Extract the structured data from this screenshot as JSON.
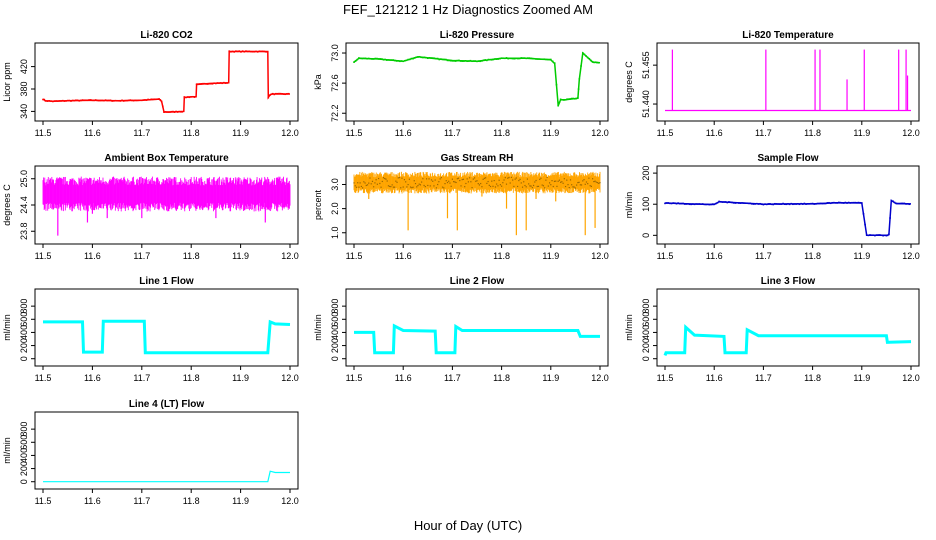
{
  "title": "FEF_121212  1 Hz Diagnostics Zoomed AM",
  "xlabel": "Hour of Day (UTC)",
  "colors": {
    "co2": "#ff0000",
    "pressure": "#00cc00",
    "temperature": "#ff00ff",
    "box": "#ff00ff",
    "rh": "#ffa500",
    "rh_line": "#996600",
    "sample": "#0000cc",
    "flow": "#00ffff"
  },
  "chart_data": [
    {
      "id": "co2",
      "type": "line",
      "title": "Li-820 CO2",
      "ylabel": "Licor ppm",
      "xlim": [
        11.5,
        12.0
      ],
      "ylim": [
        330,
        455
      ],
      "xticks": [
        "11.5",
        "11.6",
        "11.7",
        "11.8",
        "11.9",
        "12.0"
      ],
      "yticks": [
        "340",
        "380",
        "420"
      ],
      "color": "#ff0000",
      "x": [
        11.5,
        11.505,
        11.52,
        11.55,
        11.6,
        11.65,
        11.7,
        11.735,
        11.74,
        11.745,
        11.76,
        11.785,
        11.786,
        11.8,
        11.81,
        11.811,
        11.84,
        11.876,
        11.877,
        11.955,
        11.956,
        11.96,
        11.965,
        12.0
      ],
      "y": [
        362,
        359,
        358,
        359,
        360,
        359,
        360,
        362,
        358,
        339,
        339,
        340,
        365,
        366,
        366,
        388,
        390,
        391,
        447,
        447,
        365,
        370,
        371,
        371
      ]
    },
    {
      "id": "pressure",
      "type": "line",
      "title": "Li-820 Pressure",
      "ylabel": "kPa",
      "xlim": [
        11.5,
        12.0
      ],
      "ylim": [
        72.15,
        73.08
      ],
      "xticks": [
        "11.5",
        "11.6",
        "11.7",
        "11.8",
        "11.9",
        "12.0"
      ],
      "yticks": [
        "72.2",
        "72.6",
        "73.0"
      ],
      "color": "#00cc00",
      "x": [
        11.5,
        11.51,
        11.55,
        11.6,
        11.63,
        11.7,
        11.75,
        11.8,
        11.85,
        11.9,
        11.908,
        11.915,
        11.92,
        11.93,
        11.955,
        11.958,
        11.965,
        11.985,
        12.0
      ],
      "y": [
        72.88,
        72.93,
        72.92,
        72.89,
        72.95,
        72.9,
        72.89,
        72.93,
        72.93,
        72.91,
        72.86,
        72.3,
        72.38,
        72.38,
        72.4,
        72.65,
        73.0,
        72.88,
        72.87
      ]
    },
    {
      "id": "li820_temperature",
      "type": "line",
      "title": "Li-820 Temperature",
      "ylabel": "degrees C",
      "xlim": [
        11.5,
        12.0
      ],
      "ylim": [
        51.435,
        51.462
      ],
      "xticks": [
        "11.5",
        "11.6",
        "11.7",
        "11.8",
        "11.9",
        "12.0"
      ],
      "yticks": [
        "51.440",
        "51.455"
      ],
      "color": "#ff00ff",
      "baseline": 51.4375,
      "spikes": [
        {
          "x": 11.515,
          "y": 51.461
        },
        {
          "x": 11.705,
          "y": 51.461
        },
        {
          "x": 11.805,
          "y": 51.461
        },
        {
          "x": 11.815,
          "y": 51.461
        },
        {
          "x": 11.87,
          "y": 51.4495
        },
        {
          "x": 11.905,
          "y": 51.461
        },
        {
          "x": 11.975,
          "y": 51.461
        },
        {
          "x": 11.99,
          "y": 51.461
        },
        {
          "x": 11.993,
          "y": 51.451
        }
      ]
    },
    {
      "id": "box_temperature",
      "type": "line",
      "title": "Ambient Box Temperature",
      "ylabel": "degrees C",
      "xlim": [
        11.5,
        12.0
      ],
      "ylim": [
        23.6,
        25.2
      ],
      "xticks": [
        "11.5",
        "11.6",
        "11.7",
        "11.8",
        "11.9",
        "12.0"
      ],
      "yticks": [
        "23.8",
        "24.4",
        "25.0"
      ],
      "color": "#ff00ff",
      "band": [
        24.45,
        24.85
      ],
      "dips": [
        {
          "x": 11.53,
          "y": 23.7
        },
        {
          "x": 11.59,
          "y": 24.0
        },
        {
          "x": 11.7,
          "y": 24.1
        },
        {
          "x": 11.63,
          "y": 24.1
        },
        {
          "x": 11.85,
          "y": 24.1
        },
        {
          "x": 11.6,
          "y": 24.2
        },
        {
          "x": 11.95,
          "y": 24.0
        }
      ]
    },
    {
      "id": "rh",
      "type": "line",
      "title": "Gas Stream RH",
      "ylabel": "percent",
      "xlim": [
        11.5,
        12.0
      ],
      "ylim": [
        0.7,
        3.6
      ],
      "xticks": [
        "11.5",
        "11.6",
        "11.7",
        "11.8",
        "11.9",
        "12.0"
      ],
      "yticks": [
        "1.0",
        "2.0",
        "3.0"
      ],
      "color": "#ffa500",
      "band": [
        2.85,
        3.3
      ],
      "dips": [
        {
          "x": 11.53,
          "y": 2.4
        },
        {
          "x": 11.61,
          "y": 1.1
        },
        {
          "x": 11.69,
          "y": 1.6
        },
        {
          "x": 11.71,
          "y": 1.1
        },
        {
          "x": 11.76,
          "y": 2.5
        },
        {
          "x": 11.81,
          "y": 2.0
        },
        {
          "x": 11.83,
          "y": 0.9
        },
        {
          "x": 11.85,
          "y": 1.1
        },
        {
          "x": 11.87,
          "y": 2.4
        },
        {
          "x": 11.91,
          "y": 2.3
        },
        {
          "x": 11.97,
          "y": 0.9
        },
        {
          "x": 11.99,
          "y": 1.2
        }
      ]
    },
    {
      "id": "sample_flow",
      "type": "line",
      "title": "Sample Flow",
      "ylabel": "ml/min",
      "xlim": [
        11.5,
        12.0
      ],
      "ylim": [
        -15,
        210
      ],
      "xticks": [
        "11.5",
        "11.6",
        "11.7",
        "11.8",
        "11.9",
        "12.0"
      ],
      "yticks": [
        "0",
        "100",
        "200"
      ],
      "color": "#0000cc",
      "x": [
        11.5,
        11.55,
        11.6,
        11.61,
        11.7,
        11.75,
        11.8,
        11.85,
        11.9,
        11.91,
        11.95,
        11.955,
        11.96,
        11.97,
        12.0
      ],
      "y": [
        104,
        101,
        99,
        108,
        100,
        101,
        101,
        105,
        104,
        0,
        0,
        2,
        112,
        102,
        101
      ]
    },
    {
      "id": "line1",
      "type": "line",
      "title": "Line 1 Flow",
      "ylabel": "ml/min",
      "xlim": [
        11.5,
        12.0
      ],
      "ylim": [
        -50,
        1000
      ],
      "xticks": [
        "11.5",
        "11.6",
        "11.7",
        "11.8",
        "11.9",
        "12.0"
      ],
      "yticks": [
        "0",
        "200",
        "400",
        "600",
        "800"
      ],
      "color": "#00ffff",
      "x": [
        11.5,
        11.58,
        11.582,
        11.62,
        11.622,
        11.705,
        11.707,
        11.955,
        11.96,
        11.97,
        12.0
      ],
      "y": [
        560,
        560,
        100,
        100,
        570,
        570,
        90,
        90,
        560,
        530,
        520
      ]
    },
    {
      "id": "line2",
      "type": "line",
      "title": "Line 2 Flow",
      "ylabel": "ml/min",
      "xlim": [
        11.5,
        12.0
      ],
      "ylim": [
        -50,
        1000
      ],
      "xticks": [
        "11.5",
        "11.6",
        "11.7",
        "11.8",
        "11.9",
        "12.0"
      ],
      "yticks": [
        "0",
        "200",
        "400",
        "600",
        "800"
      ],
      "color": "#00ffff",
      "x": [
        11.5,
        11.54,
        11.542,
        11.58,
        11.582,
        11.6,
        11.665,
        11.667,
        11.705,
        11.707,
        11.72,
        11.955,
        11.96,
        12.0
      ],
      "y": [
        400,
        400,
        90,
        90,
        500,
        430,
        420,
        90,
        90,
        490,
        430,
        430,
        340,
        340
      ]
    },
    {
      "id": "line3",
      "type": "line",
      "title": "Line 3 Flow",
      "ylabel": "ml/min",
      "xlim": [
        11.5,
        12.0
      ],
      "ylim": [
        -50,
        1000
      ],
      "xticks": [
        "11.5",
        "11.6",
        "11.7",
        "11.8",
        "11.9",
        "12.0"
      ],
      "yticks": [
        "0",
        "200",
        "400",
        "600",
        "800"
      ],
      "color": "#00ffff",
      "x": [
        11.5,
        11.502,
        11.54,
        11.542,
        11.56,
        11.62,
        11.622,
        11.665,
        11.667,
        11.69,
        11.95,
        11.952,
        12.0
      ],
      "y": [
        50,
        90,
        90,
        480,
        360,
        340,
        90,
        90,
        440,
        350,
        350,
        250,
        260
      ]
    },
    {
      "id": "line4",
      "type": "line",
      "title": "Line 4 (LT) Flow",
      "ylabel": "ml/min",
      "xlim": [
        11.5,
        12.0
      ],
      "ylim": [
        -50,
        1000
      ],
      "xticks": [
        "11.5",
        "11.6",
        "11.7",
        "11.8",
        "11.9",
        "12.0"
      ],
      "yticks": [
        "0",
        "200",
        "400",
        "600",
        "800"
      ],
      "color": "#00ffff",
      "x": [
        11.5,
        11.955,
        11.96,
        11.97,
        12.0
      ],
      "y": [
        0,
        0,
        160,
        140,
        140
      ]
    }
  ]
}
